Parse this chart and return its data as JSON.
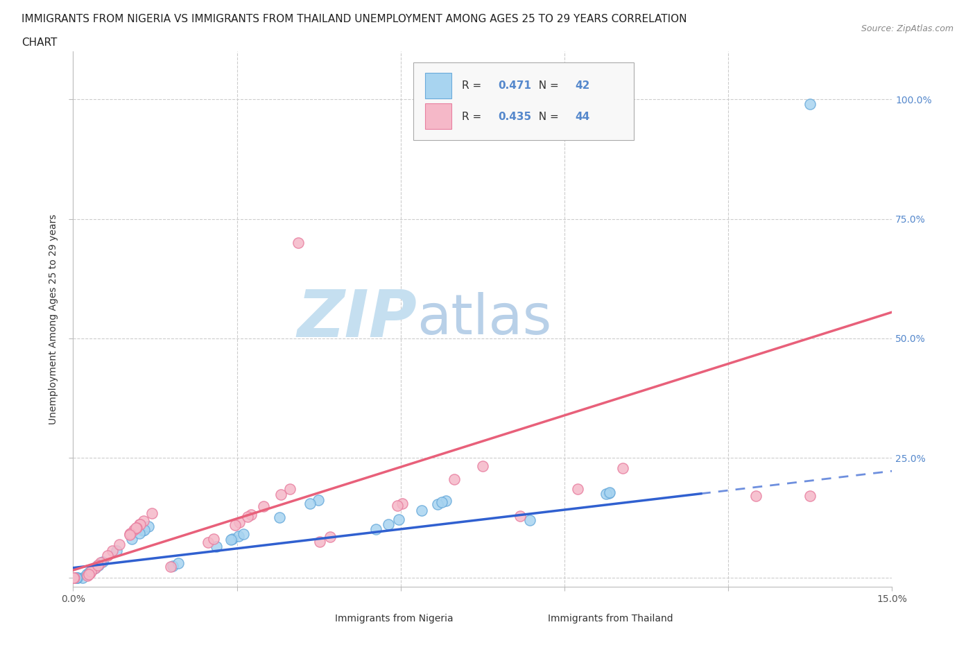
{
  "title_line1": "IMMIGRANTS FROM NIGERIA VS IMMIGRANTS FROM THAILAND UNEMPLOYMENT AMONG AGES 25 TO 29 YEARS CORRELATION",
  "title_line2": "CHART",
  "source_text": "Source: ZipAtlas.com",
  "ylabel": "Unemployment Among Ages 25 to 29 years",
  "xlim": [
    0.0,
    15.0
  ],
  "ylim": [
    -2.0,
    110.0
  ],
  "xticks": [
    0.0,
    3.0,
    6.0,
    9.0,
    12.0,
    15.0
  ],
  "xtick_labels": [
    "0.0%",
    "",
    "",
    "",
    "",
    "15.0%"
  ],
  "yticks": [
    0.0,
    25.0,
    50.0,
    75.0,
    100.0
  ],
  "ytick_labels_left": [
    "",
    "",
    "",
    "",
    ""
  ],
  "ytick_labels_right": [
    "",
    "25.0%",
    "50.0%",
    "75.0%",
    "100.0%"
  ],
  "nigeria_color": "#a8d4f0",
  "nigeria_edge_color": "#6aabdb",
  "thailand_color": "#f5b8c8",
  "thailand_edge_color": "#e87fa0",
  "nigeria_line_color": "#3060d0",
  "thailand_line_color": "#e8607a",
  "nigeria_R": 0.471,
  "nigeria_N": 42,
  "thailand_R": 0.435,
  "thailand_N": 44,
  "watermark_zip": "ZIP",
  "watermark_atlas": "atlas",
  "watermark_color_zip": "#c5dff0",
  "watermark_color_atlas": "#b8d0e8",
  "legend_label_nigeria": "Immigrants from Nigeria",
  "legend_label_thailand": "Immigrants from Thailand",
  "background_color": "#ffffff",
  "grid_color": "#cccccc",
  "title_fontsize": 11,
  "axis_label_fontsize": 10,
  "tick_fontsize": 10,
  "right_ytick_color": "#5588cc"
}
